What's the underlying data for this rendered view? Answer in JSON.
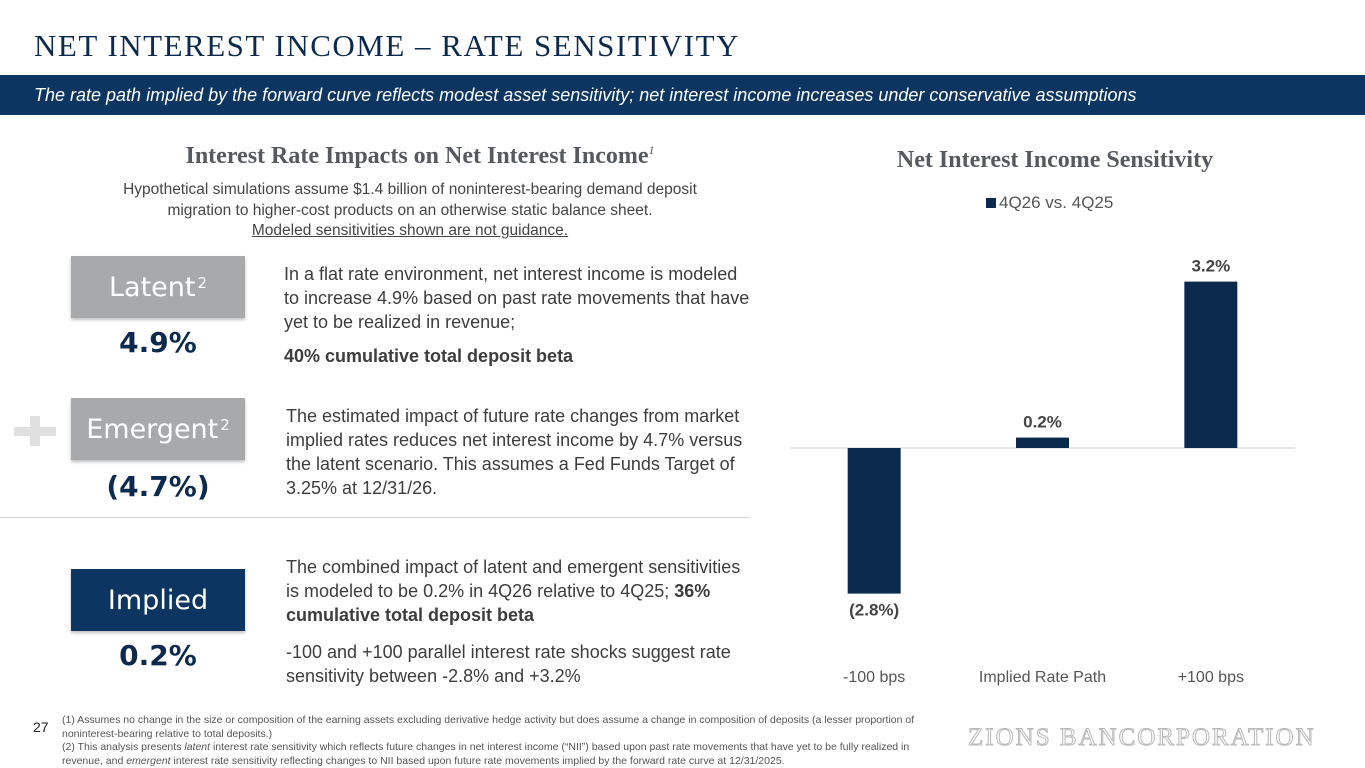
{
  "page": {
    "title": "NET INTEREST INCOME – RATE SENSITIVITY",
    "banner": "The rate path implied by the forward curve reflects modest asset sensitivity; net interest income increases under conservative assumptions",
    "page_number": "27",
    "logo": "ZIONS BANCORPORATION"
  },
  "left": {
    "heading": "Interest Rate Impacts on Net Interest Income",
    "heading_sup": "1",
    "sub_line1": "Hypothetical simulations assume $1.4 billion of noninterest-bearing demand deposit",
    "sub_line2": "migration to higher-cost products on an otherwise static balance sheet.",
    "sub_line3": "Modeled sensitivities shown are not guidance.",
    "latent": {
      "label": "Latent",
      "sup": "2",
      "value": "4.9%",
      "desc": "In a flat rate environment, net interest income is modeled to increase 4.9% based on past rate movements that have yet to be realized in revenue;",
      "desc_bold": "40% cumulative total deposit beta"
    },
    "emergent": {
      "label": "Emergent",
      "sup": "2",
      "value": "(4.7%)",
      "desc": "The estimated impact of future rate changes from market implied rates reduces net interest income by 4.7% versus the latent scenario. This assumes a Fed Funds Target of 3.25% at 12/31/26."
    },
    "implied": {
      "label": "Implied",
      "value": "0.2%",
      "desc1": "The combined impact of latent and emergent sensitivities is modeled to be 0.2% in 4Q26 relative to 4Q25; ",
      "desc1_bold": "36% cumulative total deposit beta",
      "desc2": "-100 and +100 parallel interest rate shocks suggest rate sensitivity between -2.8% and +3.2%"
    }
  },
  "chart_data": {
    "type": "bar",
    "title": "Net Interest Income Sensitivity",
    "categories": [
      "-100 bps",
      "Implied Rate Path",
      "+100 bps"
    ],
    "series": [
      {
        "name": "4Q26 vs. 4Q25",
        "values": [
          -2.8,
          0.2,
          3.2
        ],
        "labels": [
          "(2.8%)",
          "0.2%",
          "3.2%"
        ]
      }
    ],
    "ylim": [
      -3.2,
      3.7
    ],
    "grid": false,
    "legend": "top-center",
    "bar_color": "#0c2a4d"
  },
  "footnotes": {
    "f1": "(1) Assumes no change in the size or composition of the earning assets excluding derivative hedge activity but does assume a change in composition of deposits (a lesser proportion of noninterest-bearing relative to total deposits.)",
    "f2_a": "(2) This analysis presents ",
    "f2_latent": "latent",
    "f2_b": " interest rate sensitivity which reflects future changes in net interest income (“NII”) based upon past rate movements that have yet to be fully realized in revenue, and ",
    "f2_emergent": "emergent",
    "f2_c": " interest rate sensitivity reflecting changes to NII based upon future rate movements implied by the forward rate curve at 12/31/2025."
  }
}
